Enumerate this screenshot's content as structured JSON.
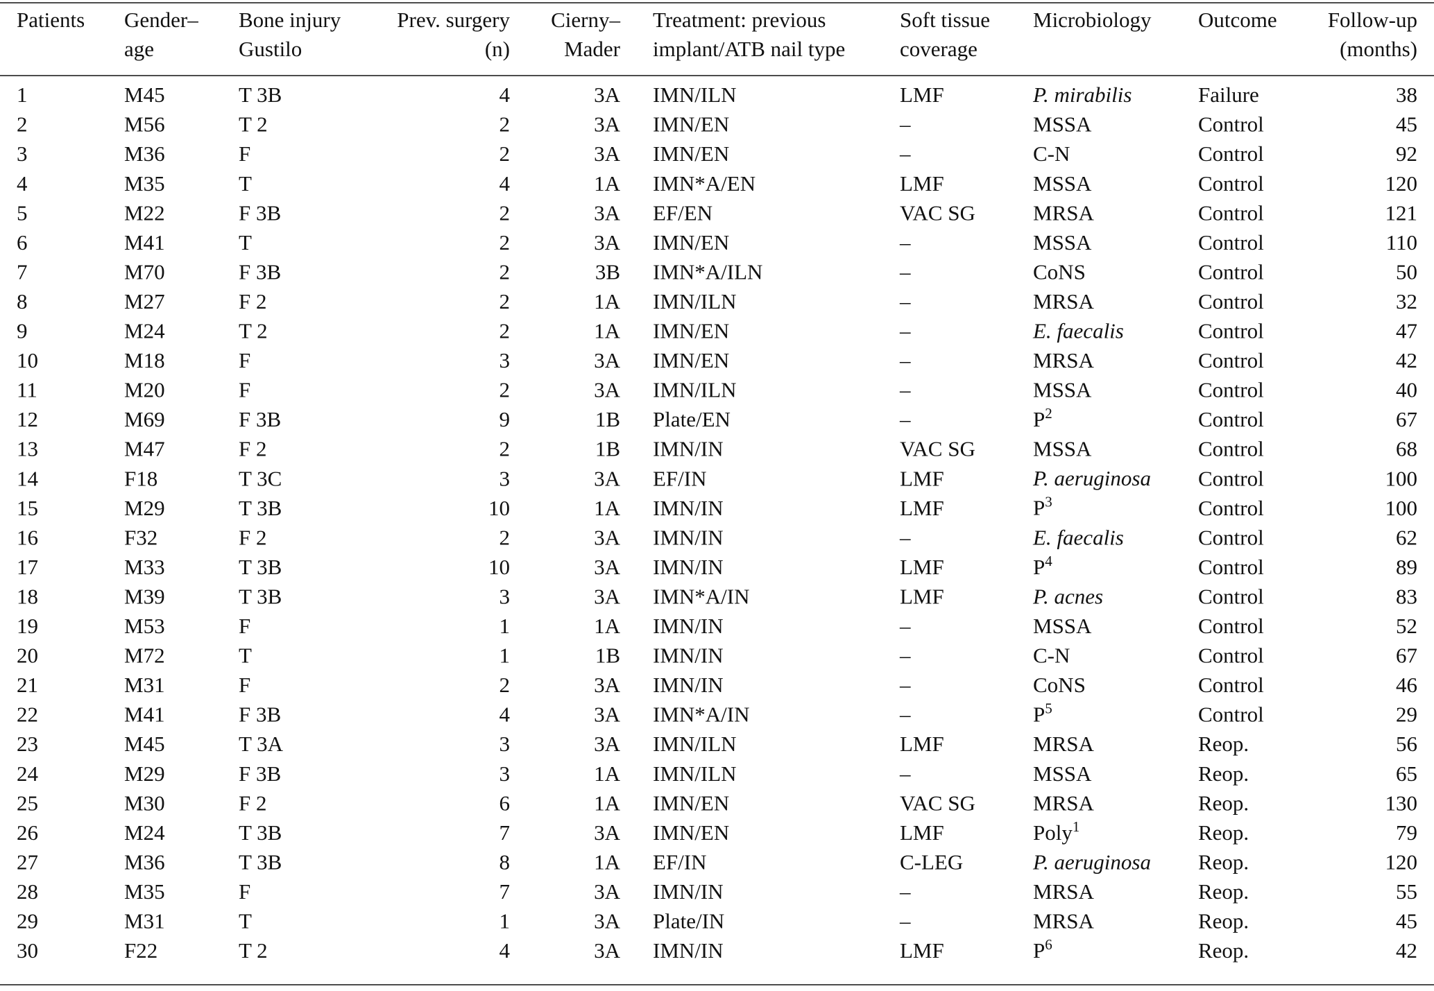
{
  "table": {
    "header": [
      [
        "Patients"
      ],
      [
        "Gender–",
        "age"
      ],
      [
        "Bone injury",
        "Gustilo"
      ],
      [
        "Prev. surgery",
        "(n)"
      ],
      [
        "Cierny–",
        "Mader"
      ],
      [
        "Treatment: previous",
        "implant/ATB nail type"
      ],
      [
        "Soft tissue",
        "coverage"
      ],
      [
        "Microbiology"
      ],
      [
        "Outcome"
      ],
      [
        "Follow-up",
        "(months)"
      ]
    ],
    "rows": [
      [
        1,
        "M45",
        "T 3B",
        4,
        "3A",
        "IMN/ILN",
        "LMF",
        {
          "text": "P. mirabilis",
          "italic": true
        },
        "Failure",
        38
      ],
      [
        2,
        "M56",
        "T 2",
        2,
        "3A",
        "IMN/EN",
        "–",
        "MSSA",
        "Control",
        45
      ],
      [
        3,
        "M36",
        "F",
        2,
        "3A",
        "IMN/EN",
        "–",
        "C-N",
        "Control",
        92
      ],
      [
        4,
        "M35",
        "T",
        4,
        "1A",
        "IMN*A/EN",
        "LMF",
        "MSSA",
        "Control",
        120
      ],
      [
        5,
        "M22",
        "F 3B",
        2,
        "3A",
        "EF/EN",
        "VAC SG",
        "MRSA",
        "Control",
        121
      ],
      [
        6,
        "M41",
        "T",
        2,
        "3A",
        "IMN/EN",
        "–",
        "MSSA",
        "Control",
        110
      ],
      [
        7,
        "M70",
        "F 3B",
        2,
        "3B",
        "IMN*A/ILN",
        "–",
        "CoNS",
        "Control",
        50
      ],
      [
        8,
        "M27",
        "F 2",
        2,
        "1A",
        "IMN/ILN",
        "–",
        "MRSA",
        "Control",
        32
      ],
      [
        9,
        "M24",
        "T 2",
        2,
        "1A",
        "IMN/EN",
        "–",
        {
          "text": "E. faecalis",
          "italic": true
        },
        "Control",
        47
      ],
      [
        10,
        "M18",
        "F",
        3,
        "3A",
        "IMN/EN",
        "–",
        "MRSA",
        "Control",
        42
      ],
      [
        11,
        "M20",
        "F",
        2,
        "3A",
        "IMN/ILN",
        "–",
        "MSSA",
        "Control",
        40
      ],
      [
        12,
        "M69",
        "F 3B",
        9,
        "1B",
        "Plate/EN",
        "–",
        {
          "text": "P",
          "sup": "2"
        },
        "Control",
        67
      ],
      [
        13,
        "M47",
        "F 2",
        2,
        "1B",
        "IMN/IN",
        "VAC SG",
        "MSSA",
        "Control",
        68
      ],
      [
        14,
        "F18",
        "T 3C",
        3,
        "3A",
        "EF/IN",
        "LMF",
        {
          "text": "P. aeruginosa",
          "italic": true
        },
        "Control",
        100
      ],
      [
        15,
        "M29",
        "T 3B",
        10,
        "1A",
        "IMN/IN",
        "LMF",
        {
          "text": "P",
          "sup": "3"
        },
        "Control",
        100
      ],
      [
        16,
        "F32",
        "F 2",
        2,
        "3A",
        "IMN/IN",
        "–",
        {
          "text": "E. faecalis",
          "italic": true
        },
        "Control",
        62
      ],
      [
        17,
        "M33",
        "T 3B",
        10,
        "3A",
        "IMN/IN",
        "LMF",
        {
          "text": "P",
          "sup": "4"
        },
        "Control",
        89
      ],
      [
        18,
        "M39",
        "T 3B",
        3,
        "3A",
        "IMN*A/IN",
        "LMF",
        {
          "text": "P. acnes",
          "italic": true
        },
        "Control",
        83
      ],
      [
        19,
        "M53",
        "F",
        1,
        "1A",
        "IMN/IN",
        "–",
        "MSSA",
        "Control",
        52
      ],
      [
        20,
        "M72",
        "T",
        1,
        "1B",
        "IMN/IN",
        "–",
        "C-N",
        "Control",
        67
      ],
      [
        21,
        "M31",
        "F",
        2,
        "3A",
        "IMN/IN",
        "–",
        "CoNS",
        "Control",
        46
      ],
      [
        22,
        "M41",
        "F 3B",
        4,
        "3A",
        "IMN*A/IN",
        "–",
        {
          "text": "P",
          "sup": "5"
        },
        "Control",
        29
      ],
      [
        23,
        "M45",
        "T 3A",
        3,
        "3A",
        "IMN/ILN",
        "LMF",
        "MRSA",
        "Reop.",
        56
      ],
      [
        24,
        "M29",
        "F 3B",
        3,
        "1A",
        "IMN/ILN",
        "–",
        "MSSA",
        "Reop.",
        65
      ],
      [
        25,
        "M30",
        "F 2",
        6,
        "1A",
        "IMN/EN",
        "VAC SG",
        "MRSA",
        "Reop.",
        130
      ],
      [
        26,
        "M24",
        "T 3B",
        7,
        "3A",
        "IMN/EN",
        "LMF",
        {
          "text": "Poly",
          "sup": "1"
        },
        "Reop.",
        79
      ],
      [
        27,
        "M36",
        "T 3B",
        8,
        "1A",
        "EF/IN",
        "C-LEG",
        {
          "text": "P. aeruginosa",
          "italic": true
        },
        "Reop.",
        120
      ],
      [
        28,
        "M35",
        "F",
        7,
        "3A",
        "IMN/IN",
        "–",
        "MRSA",
        "Reop.",
        55
      ],
      [
        29,
        "M31",
        "T",
        1,
        "3A",
        "Plate/IN",
        "–",
        "MRSA",
        "Reop.",
        45
      ],
      [
        30,
        "F22",
        "T 2",
        4,
        "3A",
        "IMN/IN",
        "LMF",
        {
          "text": "P",
          "sup": "6"
        },
        "Reop.",
        42
      ]
    ]
  }
}
